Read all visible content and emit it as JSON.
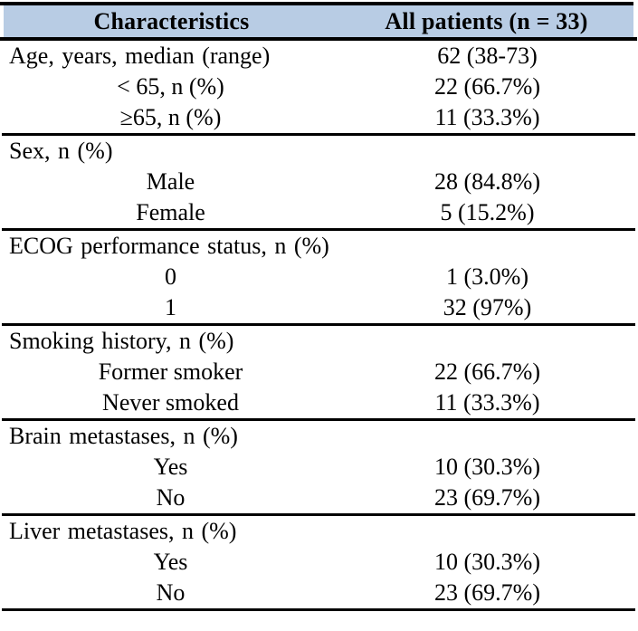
{
  "table": {
    "columns": [
      "Characteristics",
      "All patients (n = 33)"
    ],
    "rows": [
      {
        "label": "Age, years, median (range)",
        "value": "62 (38-73)",
        "indent": false,
        "section_end": false
      },
      {
        "label": "< 65, n (%)",
        "value": "22 (66.7%)",
        "indent": true,
        "section_end": false
      },
      {
        "label": "≥65, n (%)",
        "value": "11 (33.3%)",
        "indent": true,
        "section_end": true
      },
      {
        "label": "Sex, n (%)",
        "value": "",
        "indent": false,
        "section_end": false
      },
      {
        "label": "Male",
        "value": "28 (84.8%)",
        "indent": true,
        "section_end": false
      },
      {
        "label": "Female",
        "value": "5 (15.2%)",
        "indent": true,
        "section_end": true
      },
      {
        "label": "ECOG performance status, n (%)",
        "value": "",
        "indent": false,
        "section_end": false
      },
      {
        "label": "0",
        "value": "1 (3.0%)",
        "indent": true,
        "section_end": false
      },
      {
        "label": "1",
        "value": "32 (97%)",
        "indent": true,
        "section_end": true
      },
      {
        "label": "Smoking history, n (%)",
        "value": "",
        "indent": false,
        "section_end": false
      },
      {
        "label": "Former smoker",
        "value": "22 (66.7%)",
        "indent": true,
        "section_end": false
      },
      {
        "label": "Never smoked",
        "value": "11 (33.3%)",
        "indent": true,
        "section_end": true
      },
      {
        "label": "Brain metastases, n (%)",
        "value": "",
        "indent": false,
        "section_end": false
      },
      {
        "label": "Yes",
        "value": "10 (30.3%)",
        "indent": true,
        "section_end": false
      },
      {
        "label": "No",
        "value": "23 (69.7%)",
        "indent": true,
        "section_end": true
      },
      {
        "label": "Liver metastases, n (%)",
        "value": "",
        "indent": false,
        "section_end": false
      },
      {
        "label": "Yes",
        "value": "10 (30.3%)",
        "indent": true,
        "section_end": false
      },
      {
        "label": "No",
        "value": "23 (69.7%)",
        "indent": true,
        "section_end": true
      }
    ]
  },
  "colors": {
    "header_bg": "#b8cce4",
    "rule": "#000000"
  }
}
